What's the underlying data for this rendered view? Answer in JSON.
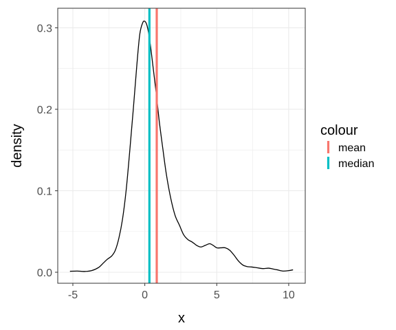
{
  "chart_data": {
    "type": "line",
    "title": "",
    "xlabel": "x",
    "ylabel": "density",
    "xlim": [
      -6.05,
      11.15
    ],
    "ylim": [
      -0.0135,
      0.324
    ],
    "grid": true,
    "x_ticks": [
      -5,
      0,
      5,
      10
    ],
    "x_tick_labels": [
      "-5",
      "0",
      "5",
      "10"
    ],
    "y_ticks": [
      0.0,
      0.1,
      0.2,
      0.3
    ],
    "y_tick_labels": [
      "0.0",
      "0.1",
      "0.2",
      "0.3"
    ],
    "series": [
      {
        "color": "#000000",
        "x": [
          -5.2,
          -4.7,
          -4.2,
          -3.7,
          -3.2,
          -2.9,
          -2.6,
          -2.3,
          -2.05,
          -1.8,
          -1.55,
          -1.3,
          -1.05,
          -0.8,
          -0.55,
          -0.35,
          -0.15,
          0.0,
          0.15,
          0.3,
          0.45,
          0.6,
          0.8,
          1.0,
          1.25,
          1.5,
          1.8,
          2.1,
          2.4,
          2.7,
          3.0,
          3.3,
          3.6,
          3.9,
          4.2,
          4.5,
          4.75,
          5.0,
          5.3,
          5.6,
          5.9,
          6.2,
          6.5,
          6.8,
          7.1,
          7.4,
          7.8,
          8.2,
          8.6,
          8.9,
          9.2,
          9.6,
          10.0,
          10.3
        ],
        "y": [
          0.0012,
          0.0015,
          0.001,
          0.002,
          0.006,
          0.011,
          0.016,
          0.02,
          0.027,
          0.042,
          0.065,
          0.1,
          0.148,
          0.2,
          0.255,
          0.292,
          0.306,
          0.308,
          0.303,
          0.29,
          0.27,
          0.248,
          0.219,
          0.186,
          0.152,
          0.12,
          0.091,
          0.07,
          0.058,
          0.046,
          0.04,
          0.037,
          0.033,
          0.031,
          0.033,
          0.035,
          0.033,
          0.03,
          0.03,
          0.03,
          0.027,
          0.021,
          0.014,
          0.009,
          0.007,
          0.0065,
          0.0055,
          0.0045,
          0.005,
          0.004,
          0.003,
          0.0015,
          0.002,
          0.003
        ]
      }
    ],
    "vlines": [
      {
        "label": "mean",
        "x": 0.83,
        "color": "#F8766D"
      },
      {
        "label": "median",
        "x": 0.32,
        "color": "#00BFC4"
      }
    ],
    "legend": {
      "title": "colour",
      "position": "right",
      "entries": [
        {
          "label": "mean",
          "color": "#F8766D"
        },
        {
          "label": "median",
          "color": "#00BFC4"
        }
      ]
    }
  }
}
